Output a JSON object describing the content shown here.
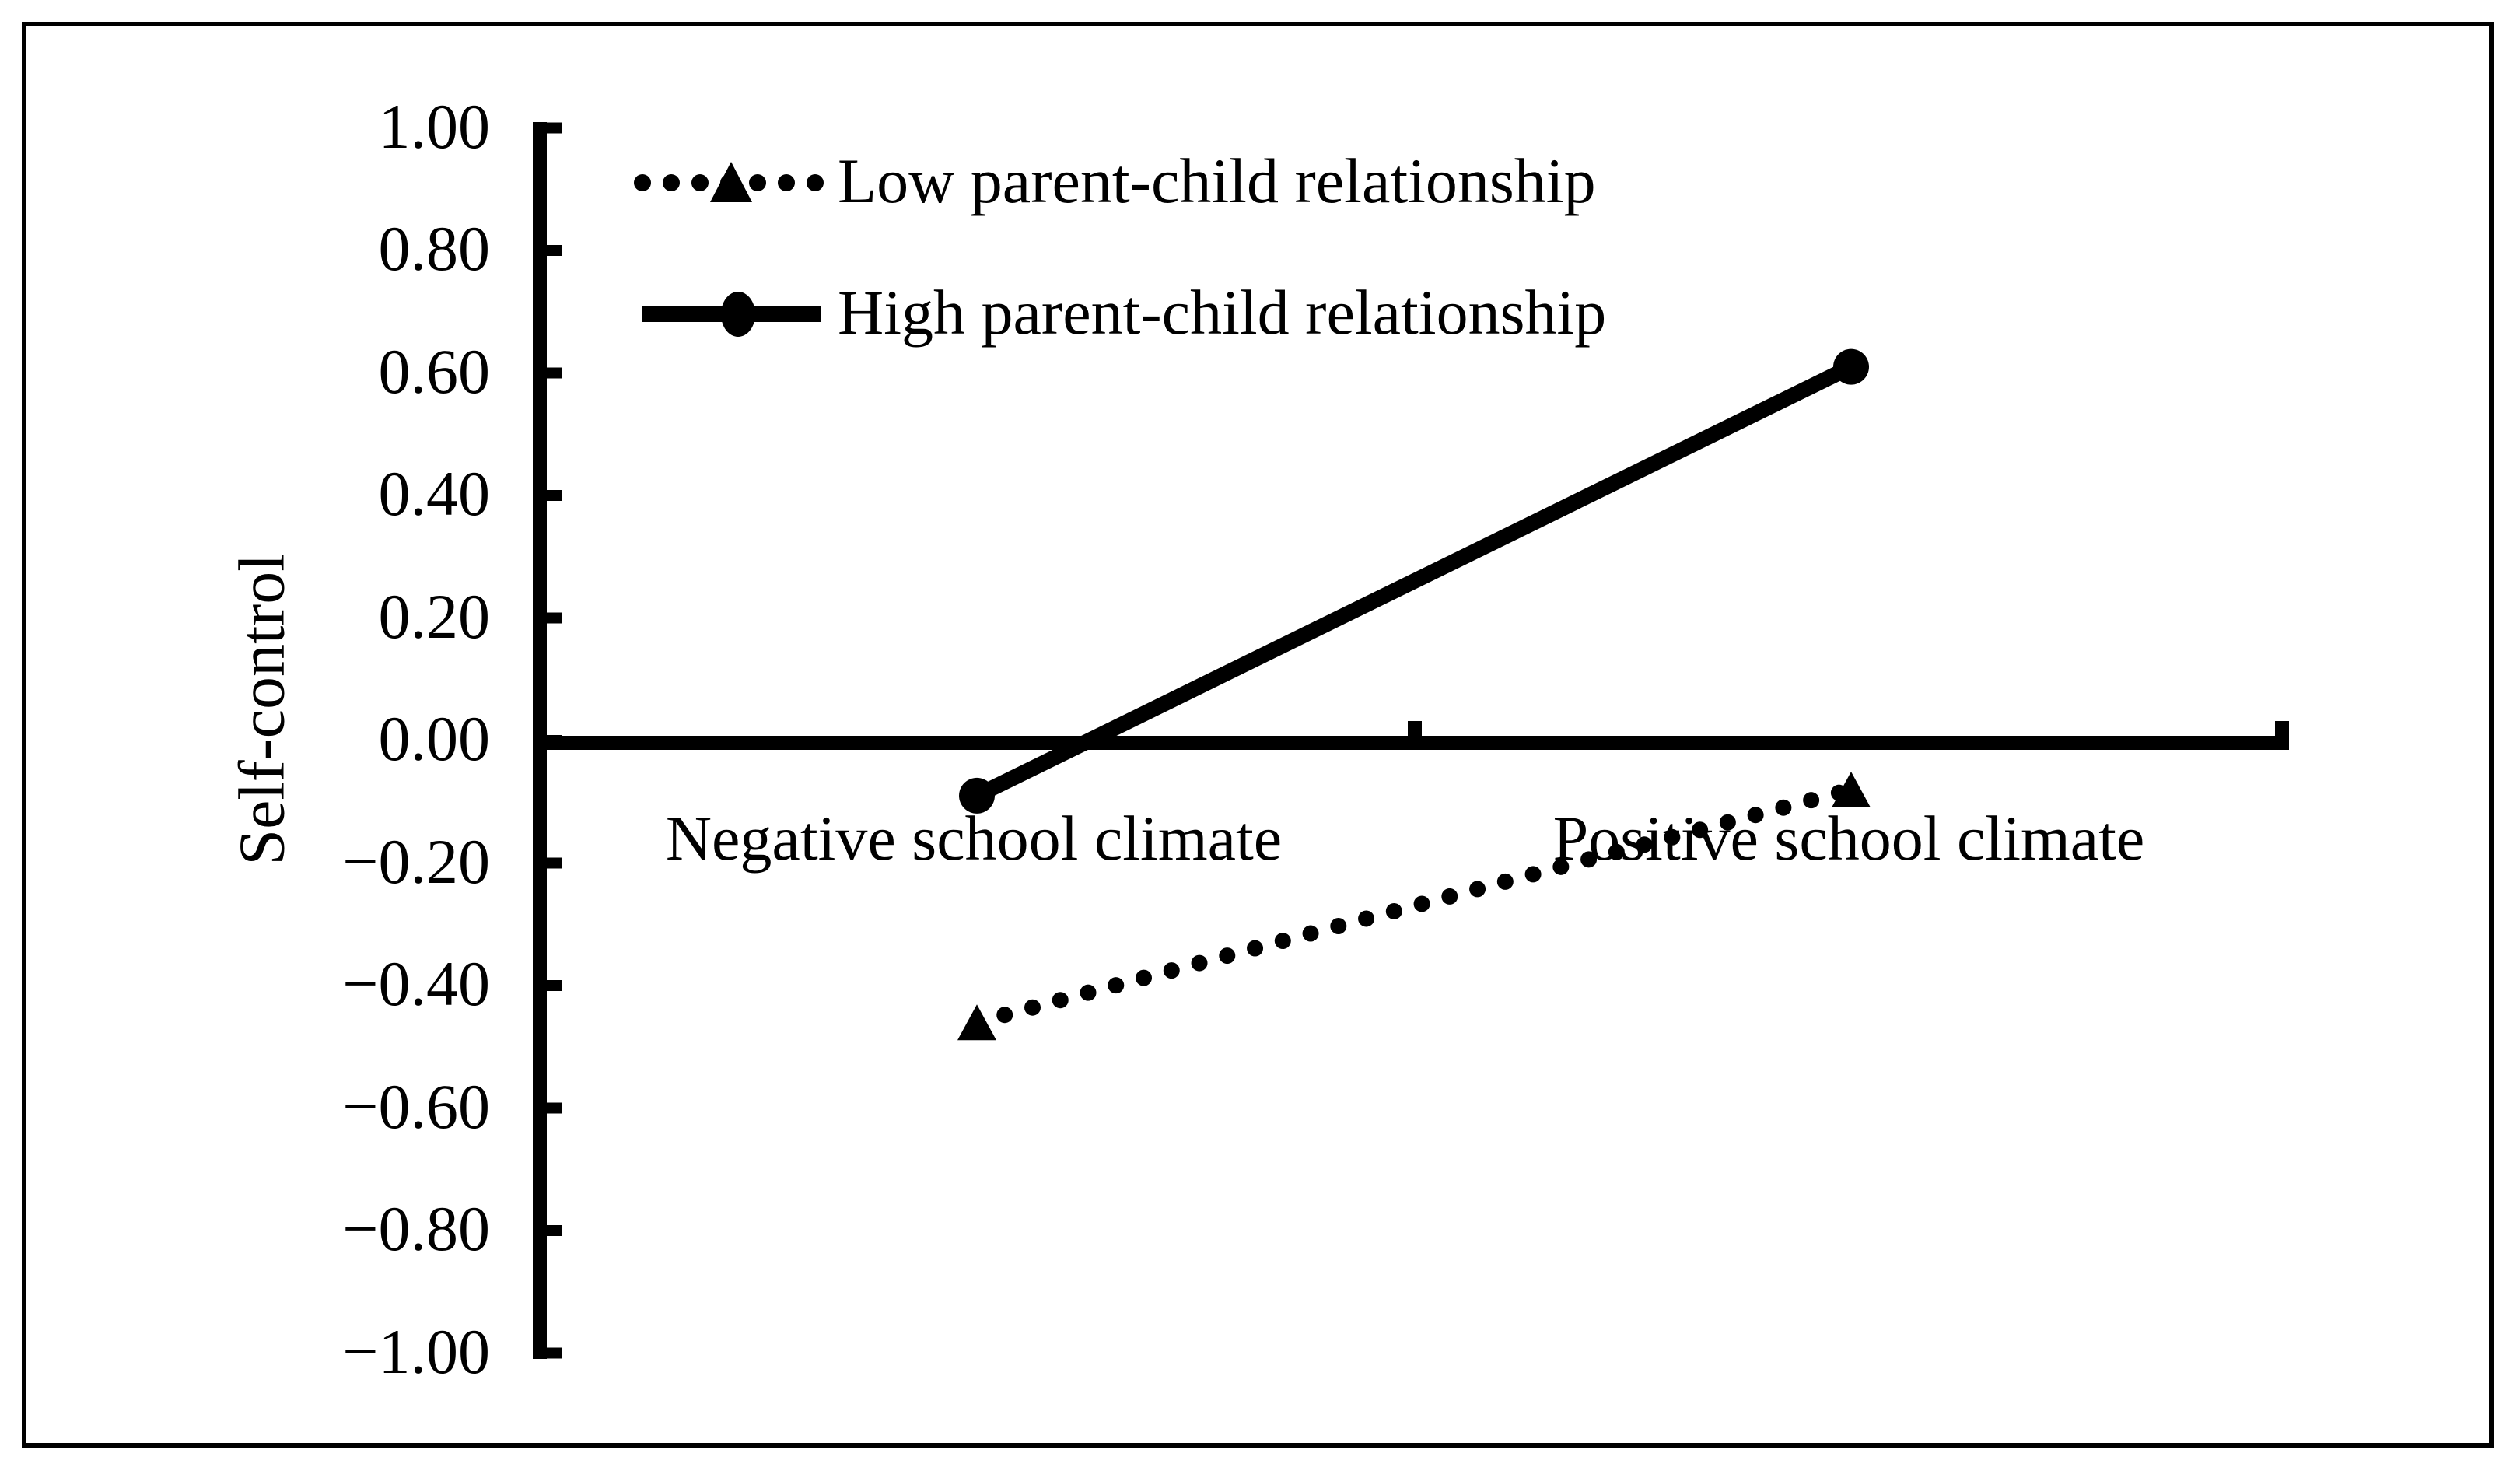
{
  "chart_data": {
    "type": "line",
    "title": "",
    "ylabel": "Self-control",
    "xlabel": "",
    "categories": [
      "Negative school climate",
      "Positive school climate"
    ],
    "series": [
      {
        "name": "Low parent-child relationship",
        "line_style": "dotted",
        "marker": "triangle",
        "values": [
          -0.46,
          -0.08
        ]
      },
      {
        "name": "High parent-child relationship",
        "line_style": "solid",
        "marker": "circle",
        "values": [
          -0.09,
          0.61
        ]
      }
    ],
    "ylim": [
      -1.0,
      1.0
    ],
    "ytick_step": 0.2,
    "ytick_labels": [
      "1.00",
      "0.80",
      "0.60",
      "0.40",
      "0.20",
      "0.00",
      "−0.20",
      "−0.40",
      "−0.60",
      "−0.80",
      "−1.00"
    ],
    "grid": false,
    "legend_position": "top-left-inside",
    "colors": {
      "foreground": "#000000",
      "background": "#ffffff"
    }
  }
}
